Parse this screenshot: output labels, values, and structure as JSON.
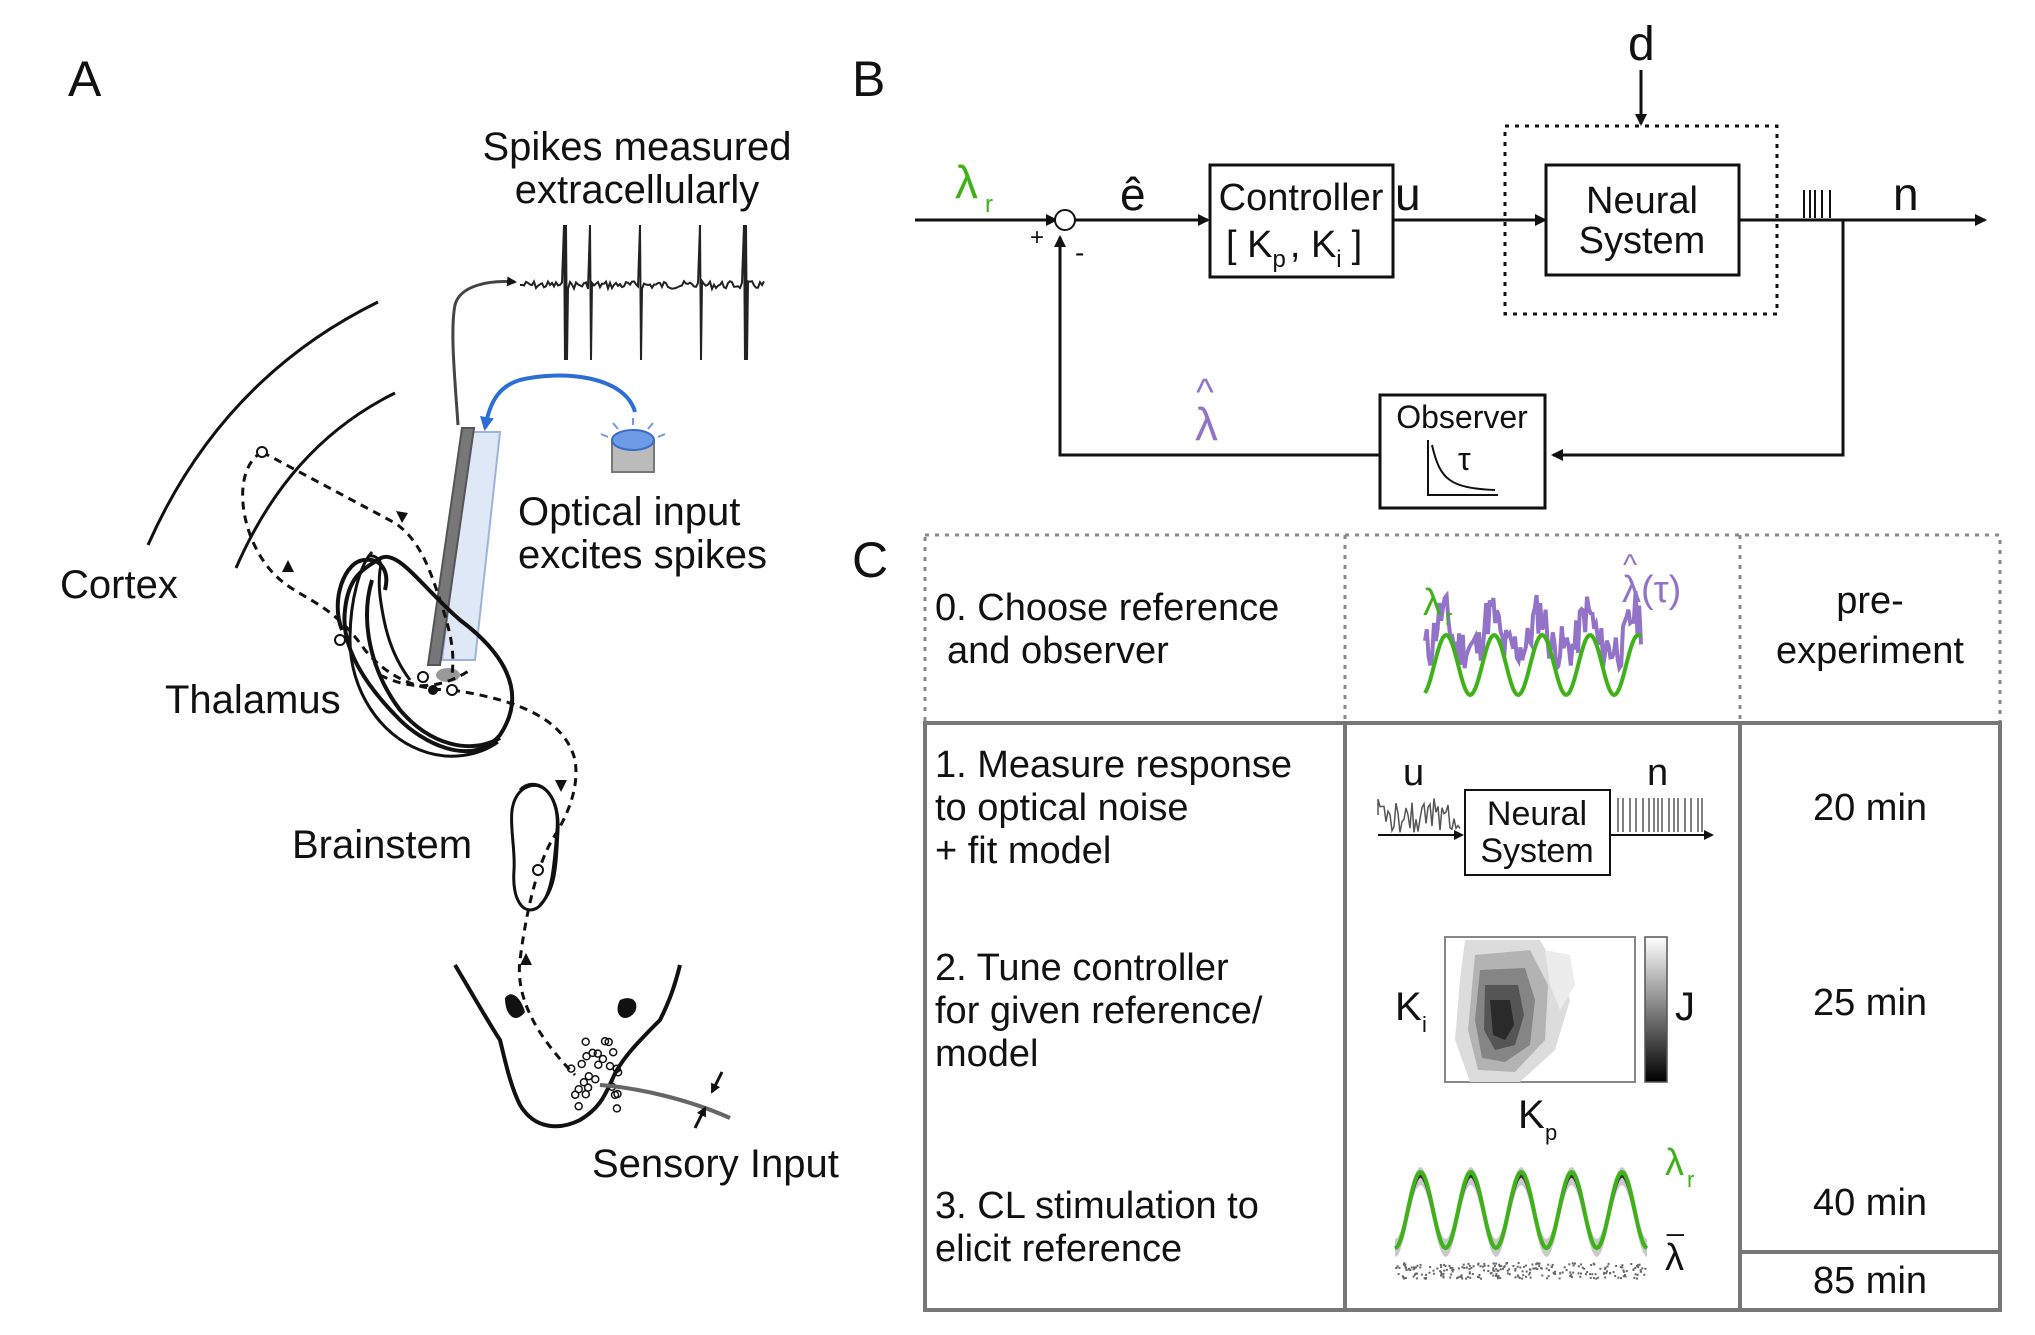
{
  "panels": {
    "a": "A",
    "b": "B",
    "c": "C"
  },
  "panel_a": {
    "spikes_line1": "Spikes measured",
    "spikes_line2": "extracellularly",
    "optical_line1": "Optical input",
    "optical_line2": "excites spikes",
    "cortex": "Cortex",
    "thalamus": "Thalamus",
    "brainstem": "Brainstem",
    "sensory": "Sensory Input"
  },
  "panel_b": {
    "reference_symbol": "λ",
    "reference_sub": "r",
    "error_symbol": "ê",
    "plus": "+",
    "minus": "-",
    "controller_line1": "Controller",
    "controller_line2_a": "[ K",
    "controller_sub_p": "p",
    "controller_line2_b": ", K",
    "controller_sub_i": "i",
    "controller_line2_c": "]",
    "u": "u",
    "d": "d",
    "neural_line1": "Neural",
    "neural_line2": "System",
    "n": "n",
    "observer": "Observer",
    "tau": "τ",
    "estimate_symbol": "λ",
    "estimate_hat": "^"
  },
  "panel_c": {
    "row0": {
      "text1": "0. Choose reference",
      "text2": "and observer",
      "time1": "pre-",
      "time2": "experiment",
      "ref_label": "λ",
      "ref_sub": "r",
      "obs_label": "λ(τ)",
      "obs_hat": "^"
    },
    "row1": {
      "text1": "1. Measure response",
      "text2": "to optical noise",
      "text3": "+ fit model",
      "time": "20 min",
      "u": "u",
      "n": "n",
      "box1": "Neural",
      "box2": "System"
    },
    "row2": {
      "text1": "2. Tune controller",
      "text2": "for given reference/",
      "text3": "model",
      "time": "25 min",
      "ki": "K",
      "ki_sub": "i",
      "kp": "K",
      "kp_sub": "p",
      "j": "J"
    },
    "row3": {
      "text1": "3. CL stimulation to",
      "text2": "elicit reference",
      "time": "40 min",
      "ref_label": "λ",
      "ref_sub": "r",
      "mean_label": "λ",
      "mean_bar": "_"
    },
    "total": "85 min"
  },
  "colors": {
    "reference": "#3fb21a",
    "estimate": "#9273c8",
    "optic_arrow": "#2b6fd6",
    "light": "#6d9be6"
  }
}
